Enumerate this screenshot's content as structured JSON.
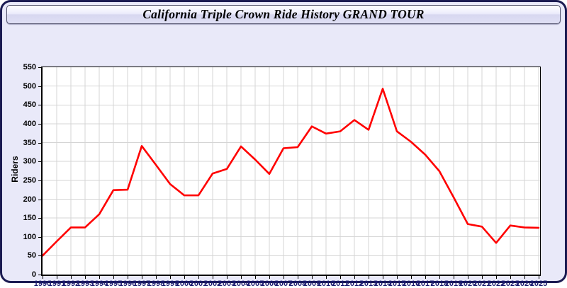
{
  "widget": {
    "title": "California Triple Crown Ride History GRAND TOUR"
  },
  "chart_data": {
    "type": "line",
    "title": "California Triple Crown Ride History GRAND TOUR",
    "xlabel": "",
    "ylabel": "Riders",
    "x": [
      "1990",
      "1991",
      "1992",
      "1993",
      "1994",
      "1995",
      "1996",
      "1997",
      "1998",
      "1999",
      "2000",
      "2001",
      "2002",
      "2003",
      "2004",
      "2005",
      "2006",
      "2007",
      "2008",
      "2009",
      "2010",
      "2011",
      "2012",
      "2013",
      "2014",
      "2015",
      "2016",
      "2017",
      "2018",
      "2019",
      "2020",
      "2021",
      "2022",
      "2023",
      "2024",
      "2025"
    ],
    "series": [
      {
        "name": "Riders",
        "color": "#ff0000",
        "values": [
          50,
          88,
          125,
          125,
          160,
          224,
          225,
          341,
          291,
          240,
          210,
          210,
          268,
          280,
          340,
          305,
          267,
          335,
          338,
          393,
          374,
          380,
          410,
          384,
          493,
          380,
          352,
          318,
          274,
          205,
          134,
          127,
          84,
          130,
          125,
          124
        ]
      }
    ],
    "ylim": [
      0,
      550
    ],
    "ytick_step": 50,
    "grid": true,
    "legend_position": "none",
    "grid_color": "#d4d4d4",
    "plot_bg": "#ffffff",
    "frame_bg": "#e9e9f9",
    "axis_color": "#000000",
    "year_label_color": "#1c1c70"
  }
}
